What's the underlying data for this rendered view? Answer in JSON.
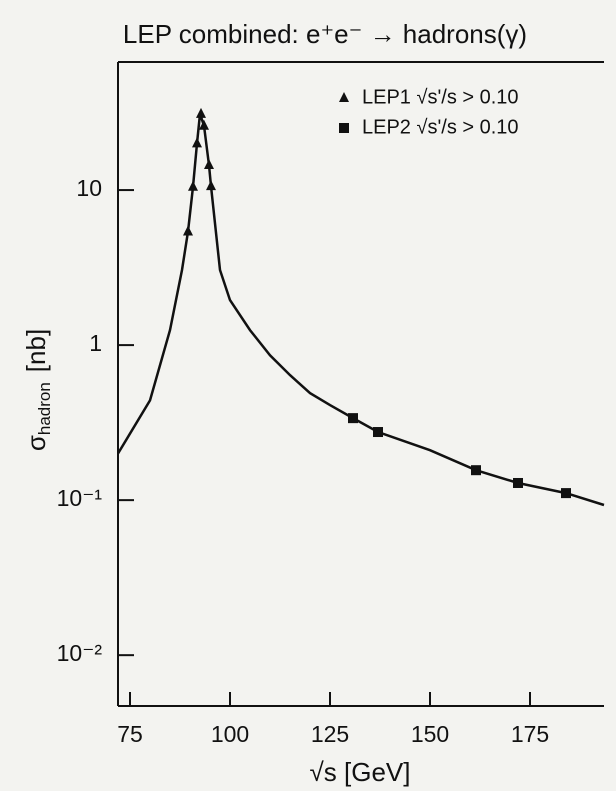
{
  "chart_data": {
    "type": "scatter",
    "title": "LEP combined: e⁺e⁻ → hadrons(γ)",
    "xlabel": "√s  [GeV]",
    "ylabel": "σ",
    "ylabel_sub": "hadron",
    "ylabel_unit": "[nb]",
    "xlim": [
      72,
      193.5
    ],
    "ylim": [
      0.0047,
      67
    ],
    "log_y": true,
    "xticks": [
      75,
      100,
      125,
      150,
      175
    ],
    "yticks": [
      {
        "value": 0.01,
        "label": "10⁻²"
      },
      {
        "value": 0.1,
        "label": "10⁻¹"
      },
      1,
      10
    ],
    "legend": "upper right",
    "series": [
      {
        "name": "LEP1 √s'/s > 0.10",
        "marker": "triangle",
        "color": "#111111",
        "x": [
          89.5,
          90.75,
          91.75,
          92.75,
          93.5,
          94.75,
          95.25
        ],
        "values": [
          5.4,
          10.5,
          20,
          31,
          26,
          14.5,
          10.6
        ]
      },
      {
        "name": "LEP2 √s'/s > 0.10",
        "marker": "square",
        "color": "#111111",
        "x": [
          130.75,
          137,
          161.5,
          172,
          184
        ],
        "values": [
          0.338,
          0.275,
          0.156,
          0.129,
          0.111
        ]
      },
      {
        "marker": "line",
        "color": "#111111",
        "x": [
          72,
          80,
          85,
          88,
          89.5,
          90.75,
          91.75,
          92.5,
          93.5,
          94.75,
          95.25,
          97.5,
          100,
          105,
          110,
          115,
          120,
          125,
          130.75,
          137,
          150,
          161.5,
          172,
          184,
          193.5
        ],
        "values": [
          0.2,
          0.44,
          1.25,
          3.05,
          5.4,
          10.5,
          20,
          31,
          26,
          14.5,
          10.6,
          3.05,
          1.95,
          1.25,
          0.86,
          0.64,
          0.49,
          0.41,
          0.338,
          0.275,
          0.21,
          0.156,
          0.129,
          0.111,
          0.093
        ]
      }
    ]
  }
}
